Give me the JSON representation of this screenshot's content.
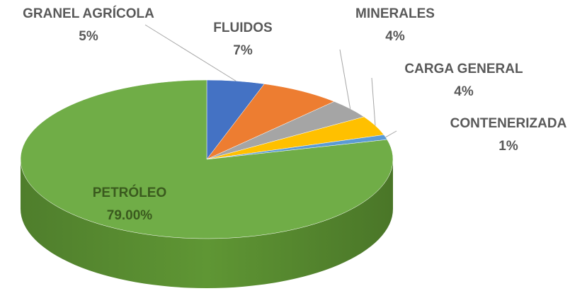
{
  "chart_data": {
    "type": "pie",
    "categories": [
      "GRANEL AGRÍCOLA",
      "FLUIDOS",
      "MINERALES",
      "CARGA GENERAL",
      "CONTENERIZADA",
      "PETRÓLEO"
    ],
    "values": [
      5,
      7,
      4,
      4,
      1,
      79
    ],
    "value_labels": [
      "5%",
      "7%",
      "4%",
      "4%",
      "1%",
      "79.00%"
    ],
    "colors": [
      "#4472c4",
      "#ed7d31",
      "#a5a5a5",
      "#ffc000",
      "#5b9bd5",
      "#70ad47"
    ]
  }
}
